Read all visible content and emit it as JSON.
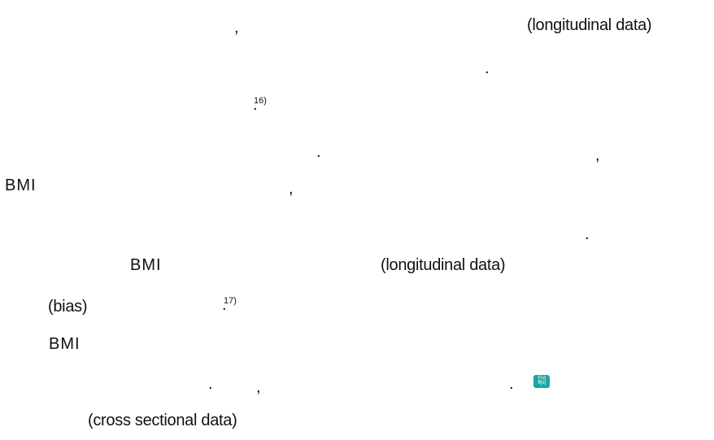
{
  "lines": {
    "l1_comma": ",",
    "l1_term": "(longitudinal  data)",
    "l2_period": ".",
    "l3_cite": "16)",
    "l3_period": ".",
    "l4_period": ".",
    "l4_comma": ",",
    "l5_bmi": "BMI",
    "l5_comma": ",",
    "l6_period": ".",
    "l7_bmi": "BMI",
    "l7_term": "(longitudinal  data)",
    "l8_bias": "(bias)",
    "l8_cite": "17)",
    "l8_period": ".",
    "l9_bmi": "BMI",
    "l10_period1": ".",
    "l10_comma": ",",
    "l10_period2": ".",
    "l10_logo_text": "한국\n복지",
    "l11_term": "(cross  sectional  data)"
  },
  "colors": {
    "text": "#111111",
    "logo": "#1aa6a0"
  }
}
